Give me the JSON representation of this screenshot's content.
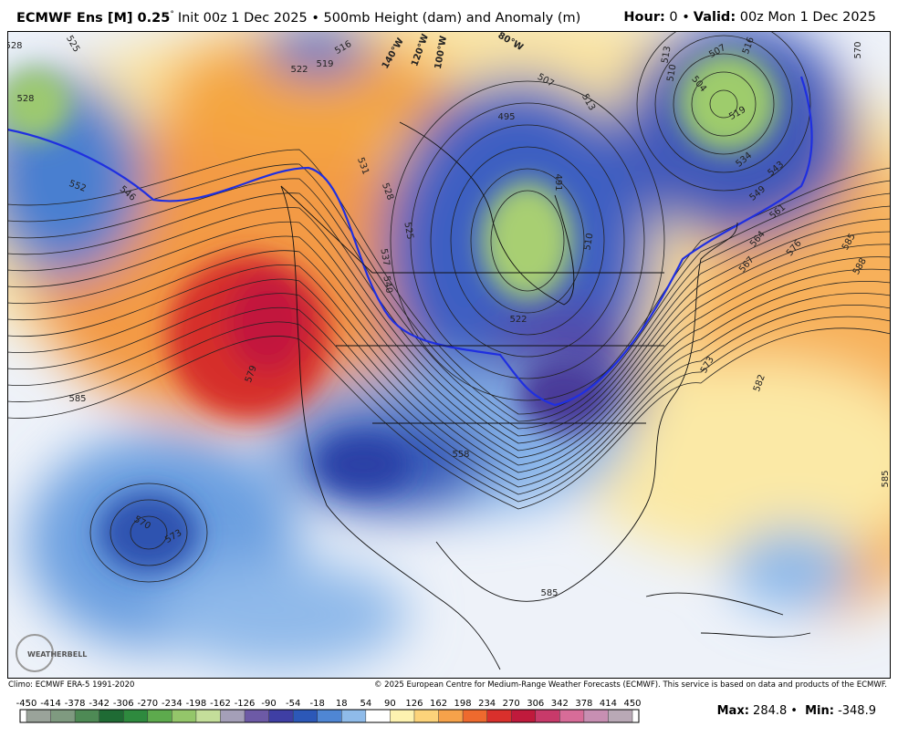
{
  "header": {
    "title_bold": "ECMWF Ens [M] 0.25",
    "degree": "°",
    "title_rest": "Init 00z 1 Dec 2025 • 500mb Height (dam) and Anomaly (m)",
    "hour_label": "Hour:",
    "hour_value": "0 •",
    "valid_label": "Valid:",
    "valid_value": "00z Mon 1 Dec 2025"
  },
  "map": {
    "contour_labels": [
      525,
      528,
      528,
      522,
      519,
      516,
      552,
      546,
      531,
      528,
      525,
      537,
      540,
      495,
      507,
      513,
      491,
      510,
      522,
      513,
      510,
      507,
      504,
      516,
      519,
      534,
      543,
      549,
      561,
      564,
      567,
      576,
      585,
      588,
      570,
      573,
      582,
      579,
      585,
      558,
      570,
      573,
      585,
      585
    ],
    "longitude_labels": [
      "140°W",
      "120°W",
      "100°W",
      "80°W"
    ],
    "logo": "WEATHERBELL"
  },
  "footer": {
    "climo": "Climo: ECMWF ERA-5 1991-2020",
    "copyright": "© 2025 European Centre for Medium-Range Weather Forecasts (ECMWF). This service is based on data and products of the ECMWF.",
    "colorbar_ticks": [
      -450,
      -414,
      -378,
      -342,
      -306,
      -270,
      -234,
      -198,
      -162,
      -126,
      -90,
      -54,
      -18,
      18,
      54,
      90,
      126,
      162,
      198,
      234,
      270,
      306,
      342,
      378,
      414,
      450
    ],
    "colorbar_colors": [
      "#9aa39a",
      "#7f9a80",
      "#4e8a55",
      "#1f6b34",
      "#2e8a3e",
      "#5daa4d",
      "#94c66a",
      "#c4de9a",
      "#a49fb8",
      "#6d5aa6",
      "#3f3fa4",
      "#2c58b8",
      "#4f86d4",
      "#8fbbe9",
      "#ffffff",
      "#fdf2b0",
      "#fcd37a",
      "#f6a24a",
      "#ee6a2e",
      "#d9302c",
      "#c01a3c",
      "#c83a6a",
      "#d76c98",
      "#c78fb2",
      "#b9a9b6"
    ],
    "max_label": "Max:",
    "max_value": "284.8",
    "sep": "•",
    "min_label": "Min:",
    "min_value": "-348.9"
  }
}
